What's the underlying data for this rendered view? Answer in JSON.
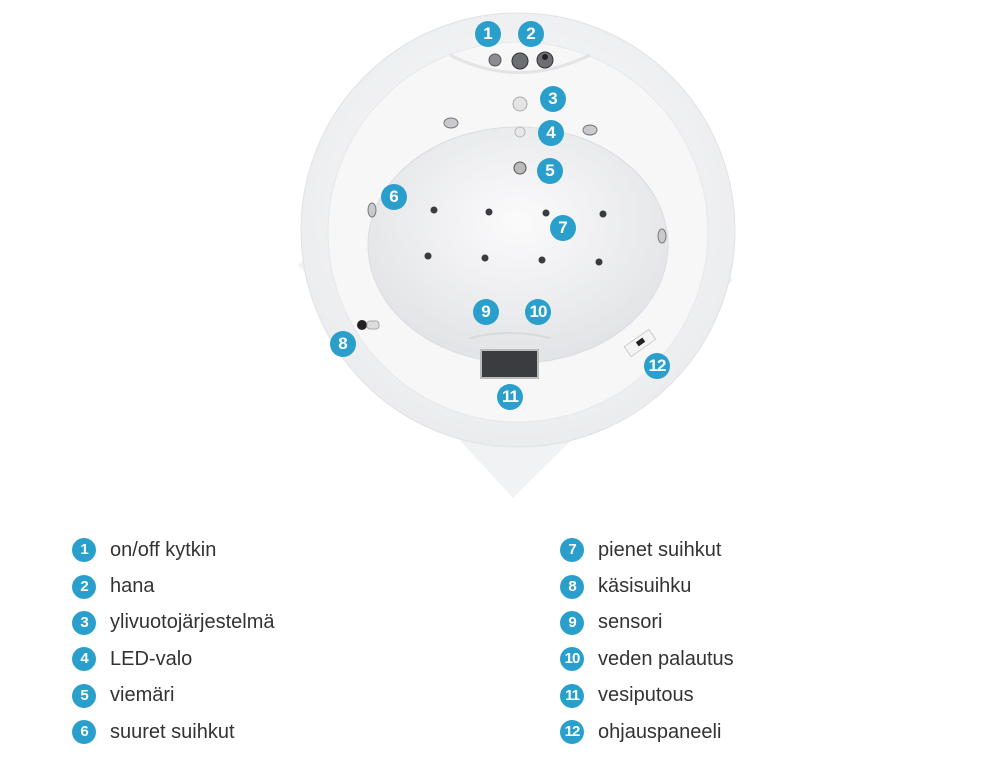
{
  "accent_color": "#2a9fcb",
  "callouts": [
    {
      "number": "1",
      "label": "on/off kytkin"
    },
    {
      "number": "2",
      "label": "hana"
    },
    {
      "number": "3",
      "label": "ylivuotojärjestelmä"
    },
    {
      "number": "4",
      "label": "LED-valo"
    },
    {
      "number": "5",
      "label": "viemäri"
    },
    {
      "number": "6",
      "label": "suuret suihkut"
    },
    {
      "number": "7",
      "label": "pienet suihkut"
    },
    {
      "number": "8",
      "label": "käsisuihku"
    },
    {
      "number": "9",
      "label": "sensori"
    },
    {
      "number": "10",
      "label": "veden palautus"
    },
    {
      "number": "11",
      "label": "vesiputous"
    },
    {
      "number": "12",
      "label": "ohjauspaneeli"
    }
  ]
}
